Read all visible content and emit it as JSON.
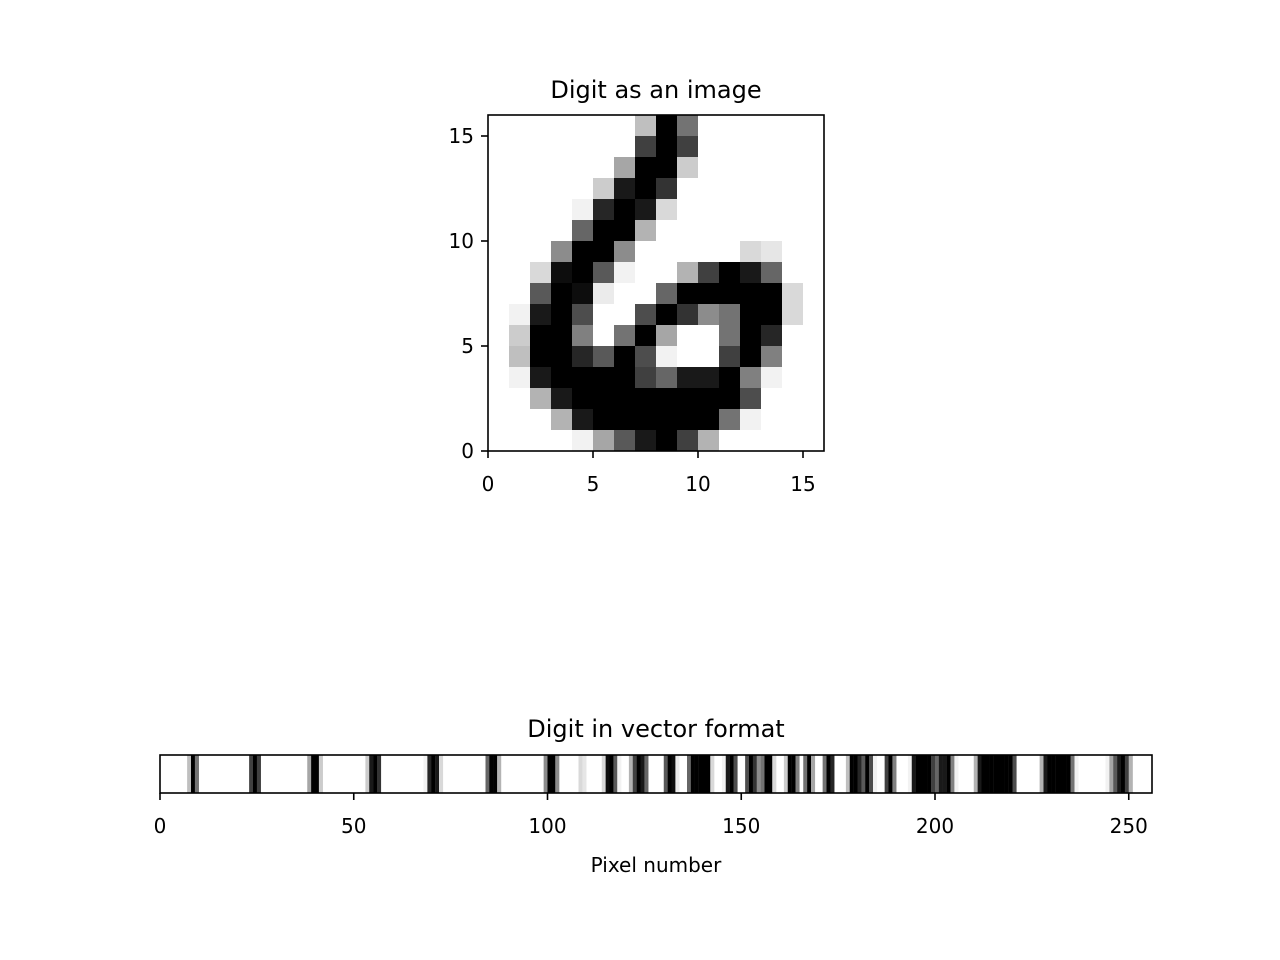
{
  "chart_data": [
    {
      "type": "heatmap",
      "title": "Digit as an image",
      "xlabel": "",
      "ylabel": "",
      "xlim": [
        0,
        16
      ],
      "ylim": [
        0,
        16
      ],
      "xticks": [
        0,
        5,
        10,
        15
      ],
      "yticks": [
        0,
        5,
        10,
        15
      ],
      "colormap": "gray_r",
      "value_range": [
        0,
        1
      ],
      "grid": false,
      "rows_top_to_bottom": [
        [
          0,
          0,
          0,
          0,
          0,
          0,
          0,
          0.25,
          1,
          0.55,
          0,
          0,
          0,
          0,
          0,
          0
        ],
        [
          0,
          0,
          0,
          0,
          0,
          0,
          0,
          0.75,
          1,
          0.75,
          0,
          0,
          0,
          0,
          0,
          0
        ],
        [
          0,
          0,
          0,
          0,
          0,
          0,
          0.35,
          1,
          1,
          0.2,
          0,
          0,
          0,
          0,
          0,
          0
        ],
        [
          0,
          0,
          0,
          0,
          0,
          0.2,
          0.9,
          1,
          0.8,
          0,
          0,
          0,
          0,
          0,
          0,
          0
        ],
        [
          0,
          0,
          0,
          0,
          0.05,
          0.85,
          1,
          0.9,
          0.15,
          0,
          0,
          0,
          0,
          0,
          0,
          0
        ],
        [
          0,
          0,
          0,
          0,
          0.6,
          1,
          1,
          0.3,
          0,
          0,
          0,
          0,
          0,
          0,
          0,
          0
        ],
        [
          0,
          0,
          0,
          0.45,
          1,
          1,
          0.45,
          0,
          0,
          0,
          0,
          0,
          0.15,
          0.1,
          0,
          0
        ],
        [
          0,
          0,
          0.15,
          0.95,
          1,
          0.65,
          0.05,
          0,
          0,
          0.3,
          0.75,
          1,
          0.9,
          0.6,
          0,
          0
        ],
        [
          0,
          0,
          0.65,
          1,
          0.95,
          0.08,
          0,
          0,
          0.6,
          1,
          1,
          1,
          1,
          1,
          0.15,
          0
        ],
        [
          0,
          0.05,
          0.9,
          1,
          0.7,
          0,
          0,
          0.7,
          1,
          0.8,
          0.45,
          0.55,
          1,
          1,
          0.15,
          0
        ],
        [
          0,
          0.2,
          1,
          1,
          0.5,
          0,
          0.55,
          1,
          0.35,
          0,
          0,
          0.55,
          1,
          0.85,
          0,
          0
        ],
        [
          0,
          0.25,
          1,
          1,
          0.85,
          0.65,
          1,
          0.7,
          0.05,
          0,
          0,
          0.75,
          1,
          0.5,
          0,
          0
        ],
        [
          0,
          0.05,
          0.9,
          1,
          1,
          1,
          1,
          0.75,
          0.6,
          0.9,
          0.9,
          1,
          0.5,
          0.05,
          0,
          0
        ],
        [
          0,
          0,
          0.3,
          0.9,
          1,
          1,
          1,
          1,
          1,
          1,
          1,
          1,
          0.7,
          0,
          0,
          0
        ],
        [
          0,
          0,
          0,
          0.3,
          0.9,
          1,
          1,
          1,
          1,
          1,
          1,
          0.55,
          0.05,
          0,
          0,
          0
        ],
        [
          0,
          0,
          0,
          0,
          0.05,
          0.35,
          0.65,
          0.9,
          1,
          0.75,
          0.3,
          0,
          0,
          0,
          0,
          0
        ]
      ]
    },
    {
      "type": "heatmap",
      "title": "Digit in vector format",
      "xlabel": "Pixel number",
      "ylabel": "",
      "xlim": [
        0,
        256
      ],
      "xticks": [
        0,
        50,
        100,
        150,
        200,
        250
      ],
      "colormap": "gray_r",
      "value_range": [
        0,
        1
      ],
      "grid": false,
      "pixel_count": 256,
      "order": "rows_top_to_bottom_concatenated"
    }
  ]
}
